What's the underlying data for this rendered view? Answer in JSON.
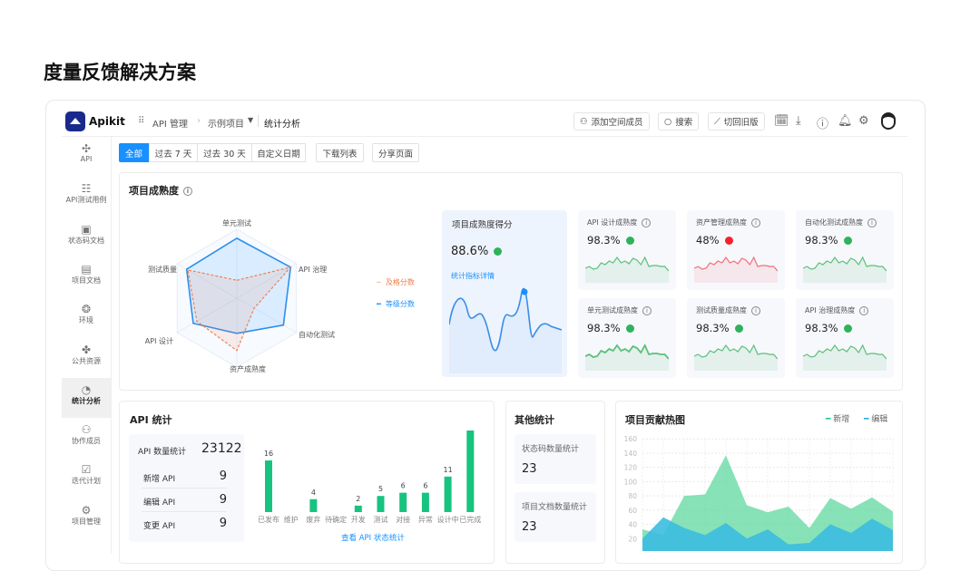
{
  "page_title": "度量反馈解决方案",
  "app": {
    "name": "Apikit",
    "breadcrumb": [
      "API 管理",
      "示例项目",
      "统计分析"
    ]
  },
  "header": {
    "add_member": "添加空间成员",
    "search": "搜索",
    "switch_old": "切回旧版",
    "icons": [
      "calendar-icon",
      "download-icon",
      "help-icon",
      "bell-icon",
      "settings-icon",
      "avatar"
    ]
  },
  "sidebar": {
    "items": [
      {
        "label": "API",
        "icon": "✣"
      },
      {
        "label": "API测试用例",
        "icon": "☷"
      },
      {
        "label": "状态码文档",
        "icon": "▣"
      },
      {
        "label": "项目文档",
        "icon": "▤"
      },
      {
        "label": "环境",
        "icon": "❂"
      },
      {
        "label": "公共资源",
        "icon": "✤"
      },
      {
        "label": "统计分析",
        "icon": "◔",
        "active": true
      },
      {
        "label": "协作成员",
        "icon": "⚇"
      },
      {
        "label": "迭代计划",
        "icon": "☑"
      },
      {
        "label": "项目管理",
        "icon": "⚙"
      }
    ]
  },
  "filters": {
    "all": "全部",
    "d7": "过去 7 天",
    "d30": "过去 30 天",
    "custom": "自定义日期",
    "download": "下载列表",
    "share": "分享页面"
  },
  "maturity": {
    "title": "项目成熟度",
    "legend": {
      "pass": "及格分数",
      "grade": "等级分数"
    },
    "score": {
      "title": "项目成熟度得分",
      "value": "88.6%",
      "trend": "up",
      "link": "统计指标详情"
    },
    "cards": [
      {
        "label": "API 设计成熟度",
        "value": "98.3%",
        "trend": "up"
      },
      {
        "label": "资产管理成熟度",
        "value": "48%",
        "trend": "down"
      },
      {
        "label": "自动化测试成熟度",
        "value": "98.3%",
        "trend": "up"
      },
      {
        "label": "单元测试成熟度",
        "value": "98.3%",
        "trend": "up"
      },
      {
        "label": "测试质量成熟度",
        "value": "98.3%",
        "trend": "up"
      },
      {
        "label": "API 治理成熟度",
        "value": "98.3%",
        "trend": "up"
      }
    ]
  },
  "api_stats": {
    "title": "API 统计",
    "total_label": "API 数量统计",
    "total": "23122",
    "rows": [
      {
        "label": "新增 API",
        "value": "9"
      },
      {
        "label": "编辑 API",
        "value": "9"
      },
      {
        "label": "变更 API",
        "value": "9"
      }
    ],
    "link": "查看 API 状态统计"
  },
  "other_stats": {
    "title": "其他统计",
    "items": [
      {
        "label": "状态码数量统计",
        "value": "23"
      },
      {
        "label": "项目文档数量统计",
        "value": "23"
      }
    ]
  },
  "heatmap": {
    "title": "项目贡献热图"
  },
  "colors": {
    "primary": "#1890ff",
    "green": "#16c47f",
    "red": "#f5222d",
    "orange": "#f08050"
  },
  "chart_data": [
    {
      "type": "radar",
      "axes": [
        "单元测试",
        "API 治理",
        "自动化测试",
        "资产成熟度",
        "API 设计",
        "测试质量"
      ],
      "series": [
        {
          "name": "及格分数",
          "values": [
            0.26,
            0.9,
            0.29,
            0.76,
            0.67,
            0.82
          ]
        },
        {
          "name": "等级分数",
          "values": [
            0.87,
            0.9,
            0.78,
            0.51,
            0.73,
            0.84
          ]
        }
      ]
    },
    {
      "type": "bar",
      "categories": [
        "已发布",
        "维护",
        "废弃",
        "待确定",
        "开发",
        "测试",
        "对接",
        "异常",
        "设计中",
        "已完成"
      ],
      "values": [
        16,
        0,
        4,
        0,
        2,
        5,
        6,
        6,
        11,
        28
      ]
    },
    {
      "type": "area",
      "title": "项目贡献热图",
      "ylim": [
        0,
        160
      ],
      "yticks": [
        20,
        40,
        60,
        80,
        100,
        120,
        140,
        160
      ],
      "legend": "top-right",
      "series": [
        {
          "name": "新增",
          "color": "#5fd8a0",
          "values": [
            33,
            25,
            80,
            82,
            137,
            67,
            57,
            65,
            35,
            77,
            62,
            78,
            58
          ]
        },
        {
          "name": "编辑",
          "color": "#3bbde0",
          "values": [
            20,
            50,
            35,
            25,
            42,
            20,
            33,
            12,
            14,
            40,
            28,
            48,
            32
          ]
        }
      ]
    }
  ]
}
